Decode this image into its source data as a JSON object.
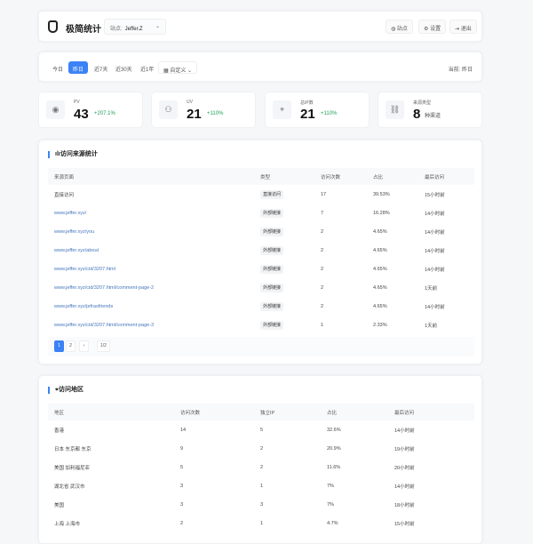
{
  "header": {
    "brand": "极简统计",
    "site_label": "站点:",
    "site_value": "Jeffer.Z",
    "buttons": [
      {
        "icon": "globe-icon",
        "label": "站点"
      },
      {
        "icon": "gear-icon",
        "label": "设置"
      },
      {
        "icon": "logout-icon",
        "label": "退出"
      }
    ]
  },
  "dates": {
    "options": [
      "今日",
      "昨日",
      "近7天",
      "近30天",
      "近1年"
    ],
    "active": "昨日",
    "custom": "自定义",
    "current": "当前: 昨日"
  },
  "stats": [
    {
      "icon": "eye-icon",
      "label": "PV",
      "value": "43",
      "delta": "+207.1%"
    },
    {
      "icon": "users-icon",
      "label": "UV",
      "value": "21",
      "delta": "+110%"
    },
    {
      "icon": "location-icon",
      "label": "总IP数",
      "value": "21",
      "delta": "+110%"
    },
    {
      "icon": "link-icon",
      "label": "来源类型",
      "value": "8",
      "delta": "种渠道"
    }
  ],
  "sources": {
    "title": "访问来源统计",
    "columns": [
      "来源页面",
      "类型",
      "访问次数",
      "占比",
      "最后访问"
    ],
    "rows": [
      [
        "直接访问",
        "直接访问",
        "17",
        "39.53%",
        "15小时前"
      ],
      [
        "www.jeffer.xyz/",
        "外部链接",
        "7",
        "16.28%",
        "14小时前"
      ],
      [
        "www.jeffer.xyz/you",
        "外部链接",
        "2",
        "4.65%",
        "14小时前"
      ],
      [
        "www.jeffer.xyz/about",
        "外部链接",
        "2",
        "4.65%",
        "14小时前"
      ],
      [
        "www.jeffer.xyz/cid/3207.html",
        "外部链接",
        "2",
        "4.65%",
        "14小时前"
      ],
      [
        "www.jeffer.xyz/cid/3207.html/comment-page-2",
        "外部链接",
        "2",
        "4.65%",
        "1天前"
      ],
      [
        "www.jeffer.xyz/jefrasfriends",
        "外部链接",
        "2",
        "4.65%",
        "14小时前"
      ],
      [
        "www.jeffer.xyz/cid/3207.html/comment-page-3",
        "外部链接",
        "1",
        "2.33%",
        "1天前"
      ]
    ],
    "pager": {
      "pages": [
        "1",
        "2"
      ],
      "next": "›",
      "info": "1/2"
    }
  },
  "regions": {
    "title": "访问地区",
    "columns": [
      "地区",
      "访问次数",
      "独立IP",
      "占比",
      "最后访问"
    ],
    "rows": [
      [
        "香港",
        "14",
        "5",
        "32.6%",
        "14小时前"
      ],
      [
        "日本 东京都 东京",
        "9",
        "2",
        "20.9%",
        "19小时前"
      ],
      [
        "美国 加利福尼亚",
        "5",
        "2",
        "11.6%",
        "20小时前"
      ],
      [
        "湖北省 武汉市",
        "3",
        "1",
        "7%",
        "14小时前"
      ],
      [
        "美国",
        "3",
        "3",
        "7%",
        "18小时前"
      ],
      [
        "上海 上海市",
        "2",
        "1",
        "4.7%",
        "15小时前"
      ]
    ]
  }
}
